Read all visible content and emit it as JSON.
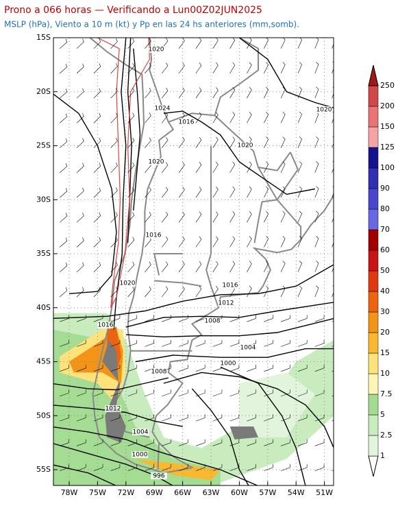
{
  "header": {
    "title": "Prono a 066 horas — Verificando a Lun00Z02JUN2025",
    "subtitle": "MSLP (hPa), Viento a 10 m (kt) y Pp en las 24 hs anteriores (mm,somb)."
  },
  "map": {
    "lat_labels": [
      "15S",
      "20S",
      "25S",
      "30S",
      "35S",
      "40S",
      "45S",
      "50S",
      "55S"
    ],
    "lon_labels": [
      "78W",
      "75W",
      "72W",
      "69W",
      "66W",
      "63W",
      "60W",
      "57W",
      "54W",
      "51W"
    ],
    "isobar_labels": [
      "1020",
      "1024",
      "1016",
      "1020",
      "1020",
      "1020",
      "1016",
      "1020",
      "1016",
      "1012",
      "1008",
      "1016",
      "1004",
      "1000",
      "1008",
      "1012",
      "1004",
      "1000",
      "996"
    ]
  },
  "colorbar": {
    "levels": [
      1,
      2.5,
      5,
      7.5,
      10,
      15,
      20,
      30,
      40,
      50,
      60,
      70,
      80,
      90,
      100,
      125,
      150,
      200,
      250
    ],
    "colors": [
      "#ffffff",
      "#e2f5dc",
      "#c8ecbe",
      "#a4dc94",
      "#fff6b4",
      "#ffe27a",
      "#f8b830",
      "#f29418",
      "#ea6412",
      "#e03810",
      "#c81414",
      "#a00000",
      "#6868e0",
      "#4848cc",
      "#3030b0",
      "#14148c",
      "#f4a4a4",
      "#e87474",
      "#d04848",
      "#a01818"
    ]
  }
}
